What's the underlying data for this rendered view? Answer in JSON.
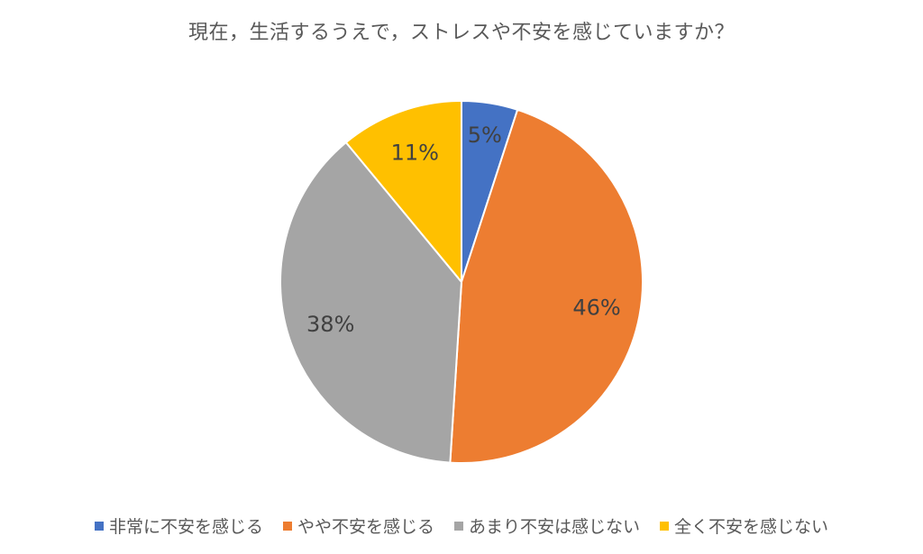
{
  "chart_data": {
    "type": "pie",
    "title": "現在，生活するうえで，ストレスや不安を感じていますか？",
    "legend_position": "bottom",
    "slices": [
      {
        "label": "非常に不安を感じる",
        "value": 5,
        "display": "5%",
        "color": "#4472C4"
      },
      {
        "label": "やや不安を感じる",
        "value": 46,
        "display": "46%",
        "color": "#ED7D31"
      },
      {
        "label": "あまり不安は感じない",
        "value": 38,
        "display": "38%",
        "color": "#A5A5A5"
      },
      {
        "label": "全く不安を感じない",
        "value": 11,
        "display": "11%",
        "color": "#FFC000"
      }
    ]
  }
}
